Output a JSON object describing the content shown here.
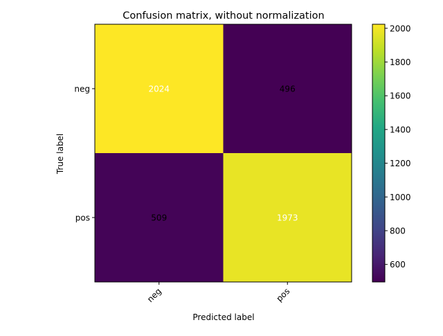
{
  "chart_data": {
    "type": "heatmap",
    "title": "Confusion matrix, without normalization",
    "xlabel": "Predicted label",
    "ylabel": "True label",
    "x_categories": [
      "neg",
      "pos"
    ],
    "y_categories": [
      "neg",
      "pos"
    ],
    "values": [
      [
        2024,
        496
      ],
      [
        509,
        1973
      ]
    ],
    "colormap": "viridis",
    "colorbar": {
      "range": [
        496,
        2024
      ],
      "ticks": [
        600,
        800,
        1000,
        1200,
        1400,
        1600,
        1800,
        2000
      ]
    },
    "grid": false
  }
}
